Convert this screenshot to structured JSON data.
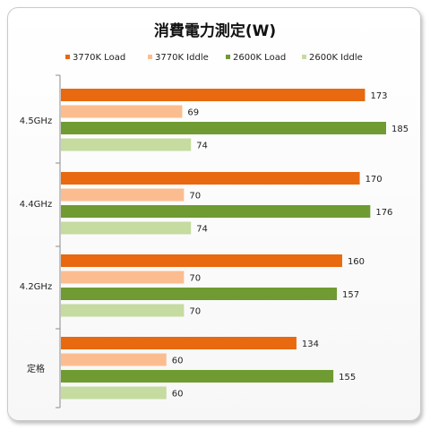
{
  "chart_data": {
    "type": "bar",
    "orientation": "horizontal",
    "title": "消費電力測定(W)",
    "xlim": [
      0,
      190
    ],
    "grid": false,
    "legend_position": "top",
    "categories": [
      "4.5GHz",
      "4.4GHz",
      "4.2GHz",
      "定格"
    ],
    "series": [
      {
        "name": "3770K Load",
        "color": "#e8690f",
        "values": [
          173,
          170,
          160,
          134
        ]
      },
      {
        "name": "3770K Iddle",
        "color": "#fbbd8f",
        "values": [
          69,
          70,
          70,
          60
        ]
      },
      {
        "name": "2600K Load",
        "color": "#6f9b32",
        "values": [
          185,
          176,
          157,
          155
        ]
      },
      {
        "name": "2600K Iddle",
        "color": "#c5dba0",
        "values": [
          74,
          74,
          70,
          60
        ]
      }
    ]
  }
}
